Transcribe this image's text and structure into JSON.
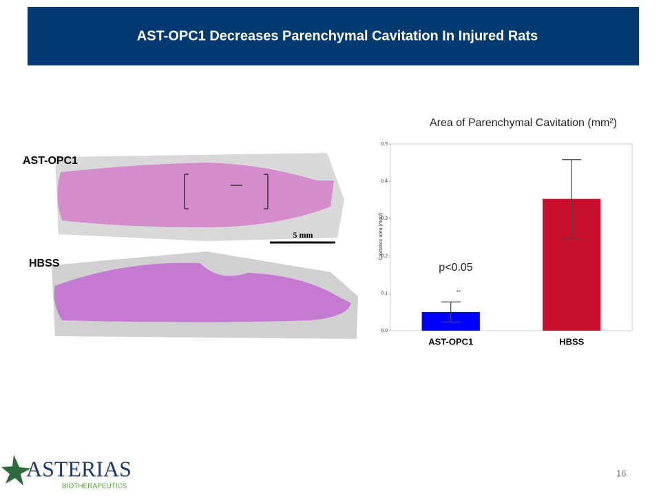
{
  "slide": {
    "title": "AST-OPC1 Decreases Parenchymal Cavitation In Injured Rats",
    "image_labels": [
      "AST-OPC1",
      "HBSS"
    ],
    "scale_bar": "5 mm",
    "page_number": "16",
    "logo": {
      "name": "ASTERIAS",
      "tagline": "BIOTHERAPEUTICS"
    }
  },
  "chart_data": {
    "type": "bar",
    "title": "Area of Parenchymal Cavitation (mm²)",
    "y_label": "Cavitation area (mm2)",
    "categories": [
      "AST-OPC1",
      "HBSS"
    ],
    "values": [
      0.05,
      0.353
    ],
    "errors": [
      0.027,
      0.105
    ],
    "colors": [
      "#0000ff",
      "#c8102e"
    ],
    "ylim": [
      0,
      0.5
    ],
    "yticks": [
      {
        "value": 0,
        "label": "0.0"
      },
      0.1,
      0.2,
      0.3,
      0.4,
      0.5
    ],
    "annotations": [
      "p<0.05",
      "**"
    ],
    "grid": false
  }
}
